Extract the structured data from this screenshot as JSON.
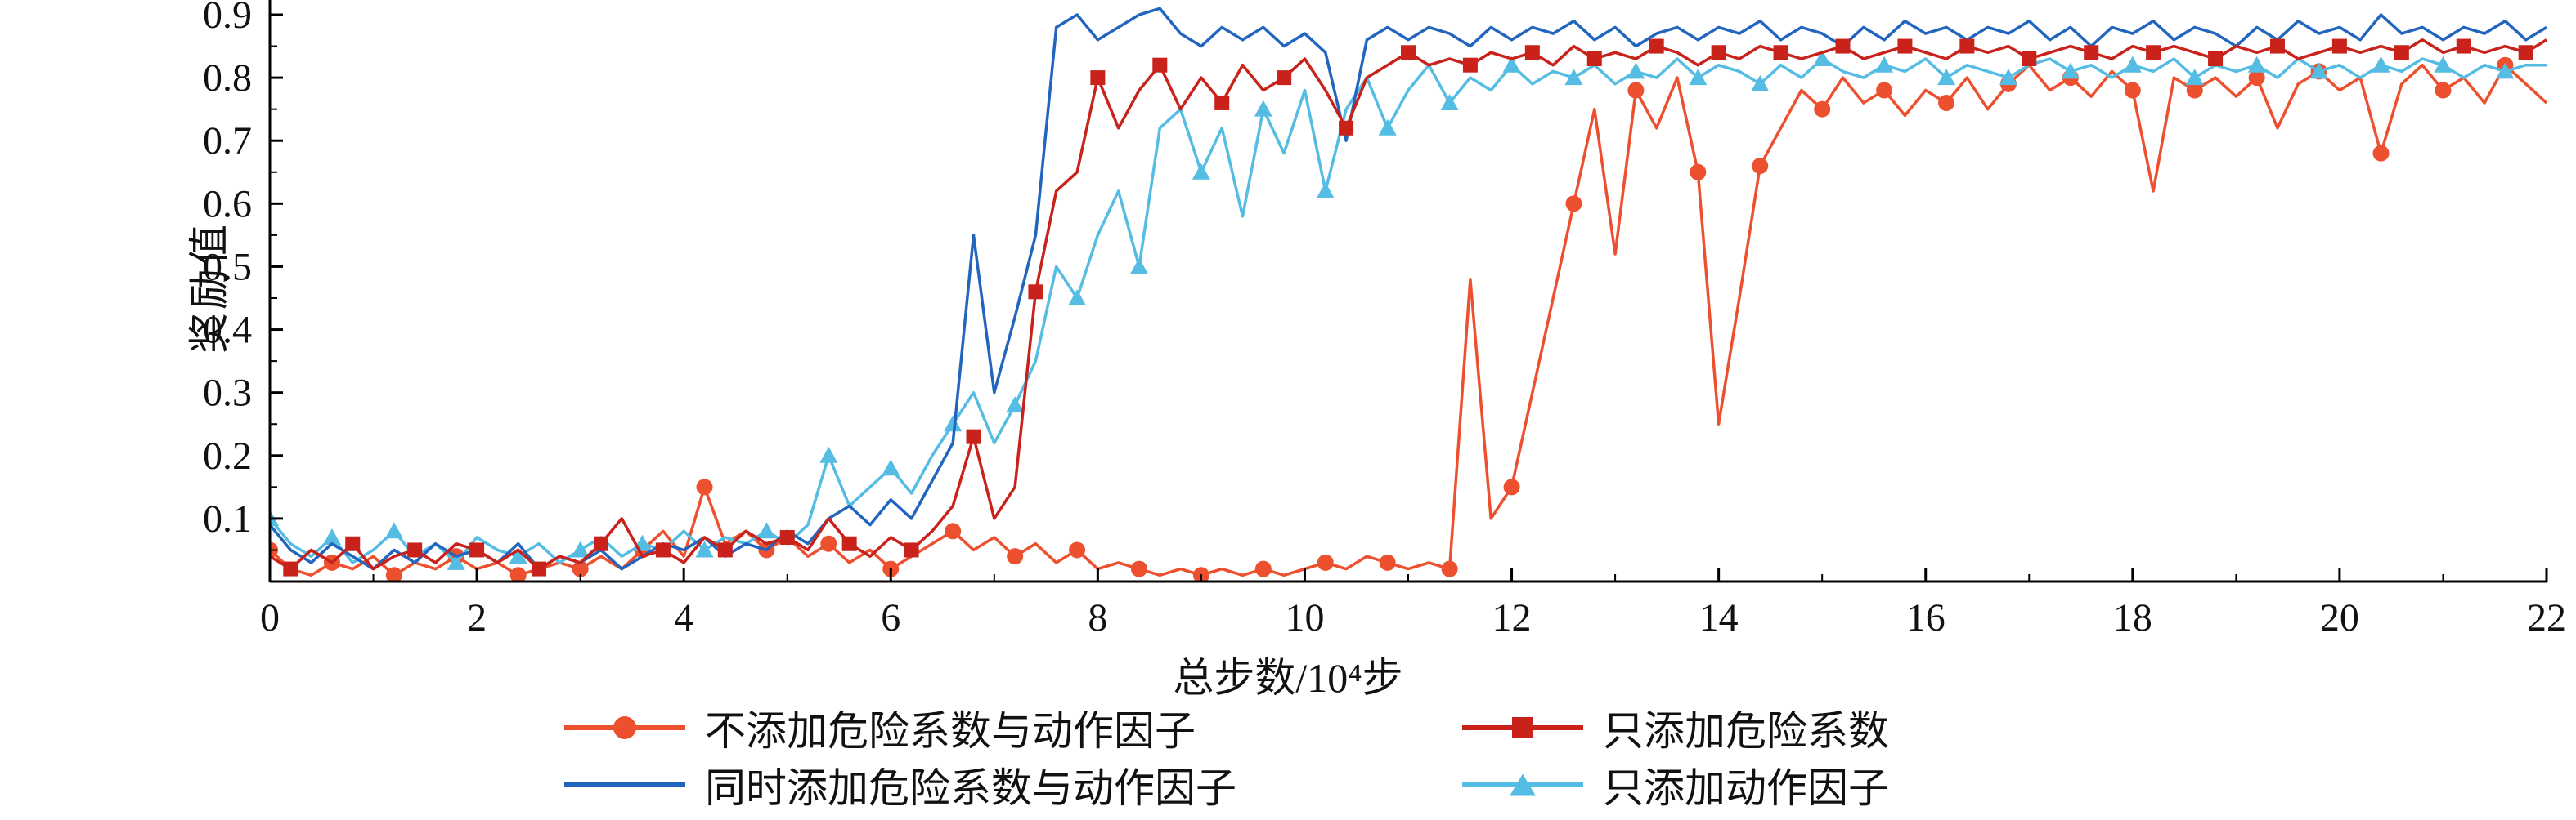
{
  "figure": {
    "background": "#ffffff"
  },
  "chart_data": {
    "type": "line",
    "title": "",
    "xlabel": "总步数/10⁴步",
    "ylabel": "奖励值",
    "xlim": [
      0,
      22
    ],
    "ylim": [
      0,
      0.92
    ],
    "x_ticks": [
      0,
      2,
      4,
      6,
      8,
      10,
      12,
      14,
      16,
      18,
      20,
      22
    ],
    "y_ticks": [
      0.1,
      0.2,
      0.3,
      0.4,
      0.5,
      0.6,
      0.7,
      0.8,
      0.9
    ],
    "grid": false,
    "legend_position": "below",
    "x_step": 0.2,
    "series": [
      {
        "name": "不添加危险系数与动作因子",
        "color": "#ED502E",
        "marker": "circle",
        "marker_every": 3,
        "values": [
          0.05,
          0.02,
          0.01,
          0.03,
          0.02,
          0.04,
          0.01,
          0.03,
          0.02,
          0.04,
          0.02,
          0.03,
          0.01,
          0.02,
          0.03,
          0.02,
          0.04,
          0.02,
          0.05,
          0.08,
          0.04,
          0.15,
          0.06,
          0.08,
          0.05,
          0.07,
          0.04,
          0.06,
          0.03,
          0.05,
          0.02,
          0.04,
          0.06,
          0.08,
          0.05,
          0.07,
          0.04,
          0.06,
          0.03,
          0.05,
          0.02,
          0.03,
          0.02,
          0.01,
          0.02,
          0.01,
          0.02,
          0.01,
          0.02,
          0.01,
          0.02,
          0.03,
          0.02,
          0.04,
          0.03,
          0.02,
          0.03,
          0.02,
          0.48,
          0.1,
          0.15,
          0.3,
          0.45,
          0.6,
          0.75,
          0.52,
          0.78,
          0.72,
          0.8,
          0.65,
          0.25,
          0.45,
          0.66,
          0.72,
          0.78,
          0.75,
          0.8,
          0.76,
          0.78,
          0.74,
          0.78,
          0.76,
          0.8,
          0.75,
          0.79,
          0.82,
          0.78,
          0.8,
          0.77,
          0.81,
          0.78,
          0.62,
          0.8,
          0.78,
          0.8,
          0.77,
          0.8,
          0.72,
          0.79,
          0.81,
          0.78,
          0.8,
          0.68,
          0.79,
          0.82,
          0.78,
          0.8,
          0.76,
          0.82,
          0.79,
          0.76
        ]
      },
      {
        "name": "只添加危险系数",
        "color": "#C8221B",
        "marker": "square",
        "marker_every": 3,
        "values": [
          0.04,
          0.02,
          0.05,
          0.03,
          0.06,
          0.02,
          0.04,
          0.05,
          0.03,
          0.06,
          0.05,
          0.03,
          0.05,
          0.02,
          0.04,
          0.03,
          0.06,
          0.1,
          0.04,
          0.05,
          0.03,
          0.07,
          0.05,
          0.08,
          0.06,
          0.07,
          0.05,
          0.1,
          0.06,
          0.04,
          0.07,
          0.05,
          0.08,
          0.12,
          0.23,
          0.1,
          0.15,
          0.46,
          0.62,
          0.65,
          0.8,
          0.72,
          0.78,
          0.82,
          0.75,
          0.8,
          0.76,
          0.82,
          0.78,
          0.8,
          0.83,
          0.78,
          0.72,
          0.8,
          0.82,
          0.84,
          0.82,
          0.83,
          0.82,
          0.84,
          0.83,
          0.84,
          0.82,
          0.85,
          0.83,
          0.84,
          0.83,
          0.85,
          0.84,
          0.82,
          0.84,
          0.83,
          0.85,
          0.84,
          0.83,
          0.84,
          0.85,
          0.83,
          0.84,
          0.85,
          0.84,
          0.83,
          0.85,
          0.84,
          0.85,
          0.83,
          0.84,
          0.85,
          0.84,
          0.83,
          0.85,
          0.84,
          0.85,
          0.84,
          0.83,
          0.85,
          0.84,
          0.85,
          0.83,
          0.84,
          0.85,
          0.84,
          0.85,
          0.84,
          0.86,
          0.84,
          0.85,
          0.84,
          0.85,
          0.84,
          0.86
        ]
      },
      {
        "name": "同时添加危险系数与动作因子",
        "color": "#2265BE",
        "marker": "none",
        "marker_every": 3,
        "values": [
          0.09,
          0.05,
          0.03,
          0.06,
          0.04,
          0.02,
          0.05,
          0.03,
          0.06,
          0.04,
          0.05,
          0.03,
          0.06,
          0.02,
          0.04,
          0.03,
          0.05,
          0.02,
          0.04,
          0.06,
          0.05,
          0.07,
          0.04,
          0.06,
          0.05,
          0.08,
          0.06,
          0.1,
          0.12,
          0.09,
          0.13,
          0.1,
          0.16,
          0.22,
          0.55,
          0.3,
          0.42,
          0.55,
          0.88,
          0.9,
          0.86,
          0.88,
          0.9,
          0.91,
          0.87,
          0.85,
          0.88,
          0.86,
          0.88,
          0.85,
          0.87,
          0.84,
          0.7,
          0.86,
          0.88,
          0.86,
          0.88,
          0.87,
          0.85,
          0.88,
          0.86,
          0.88,
          0.87,
          0.89,
          0.86,
          0.88,
          0.85,
          0.87,
          0.88,
          0.86,
          0.88,
          0.87,
          0.89,
          0.86,
          0.88,
          0.87,
          0.85,
          0.88,
          0.86,
          0.89,
          0.87,
          0.88,
          0.86,
          0.88,
          0.87,
          0.89,
          0.86,
          0.88,
          0.85,
          0.88,
          0.87,
          0.89,
          0.86,
          0.88,
          0.87,
          0.85,
          0.88,
          0.86,
          0.89,
          0.87,
          0.88,
          0.86,
          0.9,
          0.87,
          0.88,
          0.86,
          0.88,
          0.87,
          0.89,
          0.86,
          0.88
        ]
      },
      {
        "name": "只添加动作因子",
        "color": "#55BCE4",
        "marker": "triangle",
        "marker_every": 3,
        "values": [
          0.1,
          0.06,
          0.04,
          0.07,
          0.03,
          0.05,
          0.08,
          0.04,
          0.06,
          0.03,
          0.07,
          0.05,
          0.04,
          0.06,
          0.03,
          0.05,
          0.07,
          0.04,
          0.06,
          0.05,
          0.08,
          0.05,
          0.07,
          0.06,
          0.08,
          0.06,
          0.09,
          0.2,
          0.12,
          0.15,
          0.18,
          0.14,
          0.2,
          0.25,
          0.3,
          0.22,
          0.28,
          0.35,
          0.5,
          0.45,
          0.55,
          0.62,
          0.5,
          0.72,
          0.75,
          0.65,
          0.72,
          0.58,
          0.75,
          0.68,
          0.78,
          0.62,
          0.75,
          0.8,
          0.72,
          0.78,
          0.82,
          0.76,
          0.8,
          0.78,
          0.82,
          0.79,
          0.81,
          0.8,
          0.82,
          0.79,
          0.81,
          0.8,
          0.83,
          0.8,
          0.82,
          0.81,
          0.79,
          0.82,
          0.8,
          0.83,
          0.81,
          0.8,
          0.82,
          0.81,
          0.83,
          0.8,
          0.82,
          0.81,
          0.8,
          0.82,
          0.83,
          0.81,
          0.82,
          0.8,
          0.82,
          0.81,
          0.83,
          0.8,
          0.82,
          0.81,
          0.82,
          0.8,
          0.83,
          0.81,
          0.82,
          0.8,
          0.82,
          0.81,
          0.83,
          0.82,
          0.8,
          0.82,
          0.81,
          0.82,
          0.82
        ]
      }
    ]
  }
}
